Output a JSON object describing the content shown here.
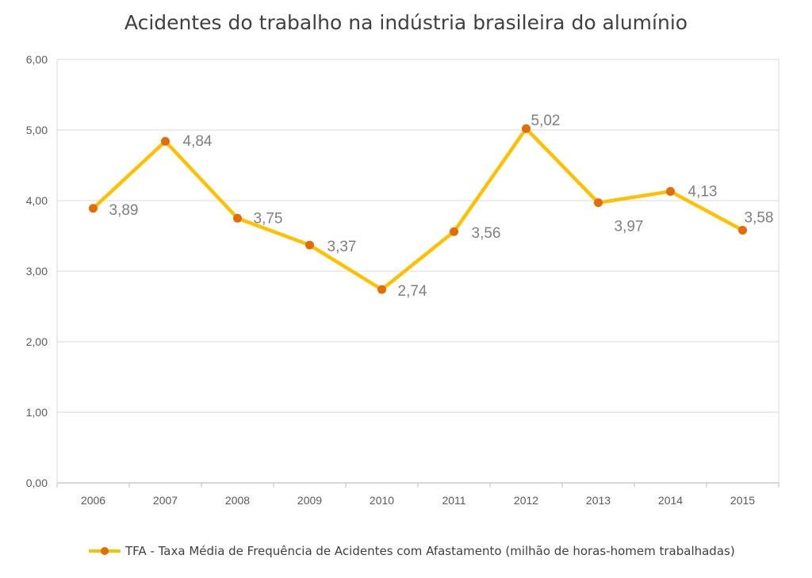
{
  "chart_data": {
    "type": "line",
    "title": "Acidentes do trabalho na indústria brasileira do alumínio",
    "categories": [
      "2006",
      "2007",
      "2008",
      "2009",
      "2010",
      "2011",
      "2012",
      "2013",
      "2014",
      "2015"
    ],
    "series": [
      {
        "name": "TFA - Taxa Média de Frequência de Acidentes com Afastamento (milhão de horas-homem trabalhadas)",
        "values": [
          3.89,
          4.84,
          3.75,
          3.37,
          2.74,
          3.56,
          5.02,
          3.97,
          4.13,
          3.58
        ],
        "labels": [
          "3,89",
          "4,84",
          "3,75",
          "3,37",
          "2,74",
          "3,56",
          "5,02",
          "3,97",
          "4,13",
          "3,58"
        ],
        "line_color": "#FFC000",
        "marker_color": "#E36C09"
      }
    ],
    "yticks": [
      "0,00",
      "1,00",
      "2,00",
      "3,00",
      "4,00",
      "5,00",
      "6,00"
    ],
    "ylim": [
      0,
      6
    ],
    "grid": true,
    "legend_position": "bottom"
  }
}
